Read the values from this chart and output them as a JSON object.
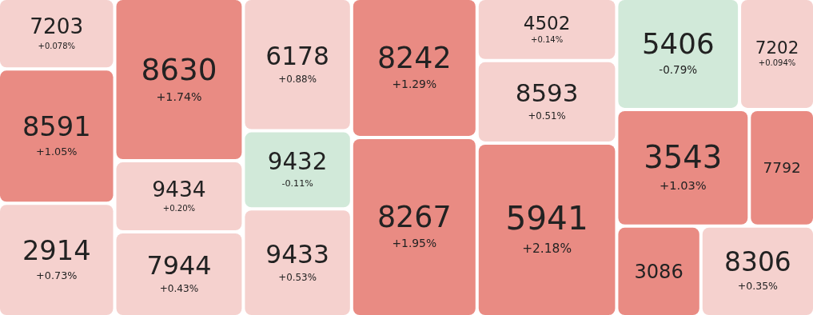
{
  "chart_data": {
    "type": "other",
    "categories": [
      "7203",
      "8591",
      "2914",
      "8630",
      "9434",
      "7944",
      "6178",
      "9432",
      "9433",
      "8242",
      "8267",
      "4502",
      "8593",
      "5941",
      "5406",
      "7202",
      "3543",
      "7792",
      "3086",
      "8306"
    ],
    "values": [
      0.078,
      1.05,
      0.73,
      1.74,
      0.2,
      0.43,
      0.88,
      -0.11,
      0.53,
      1.29,
      1.95,
      0.14,
      0.51,
      2.18,
      -0.79,
      0.094,
      1.03,
      null,
      null,
      0.35
    ],
    "value_labels": [
      "+0.078%",
      "+1.05%",
      "+0.73%",
      "+1.74%",
      "+0.20%",
      "+0.43%",
      "+0.88%",
      "-0.11%",
      "+0.53%",
      "+1.29%",
      "+1.95%",
      "+0.14%",
      "+0.51%",
      "+2.18%",
      "-0.79%",
      "+0.094%",
      "+1.03%",
      null,
      null,
      "+0.35%"
    ],
    "colors": [
      "#f5d1ce",
      "#e98b83",
      "#f5d1ce",
      "#e98b83",
      "#f5d1ce",
      "#f5d1ce",
      "#f5d1ce",
      "#d1e9d9",
      "#f5d1ce",
      "#e98b83",
      "#e98b83",
      "#f5d1ce",
      "#f5d1ce",
      "#e98b83",
      "#d1e9d9",
      "#f5d1ce",
      "#e98b83",
      "#e98b83",
      "#e98b83",
      "#f5d1ce"
    ]
  }
}
